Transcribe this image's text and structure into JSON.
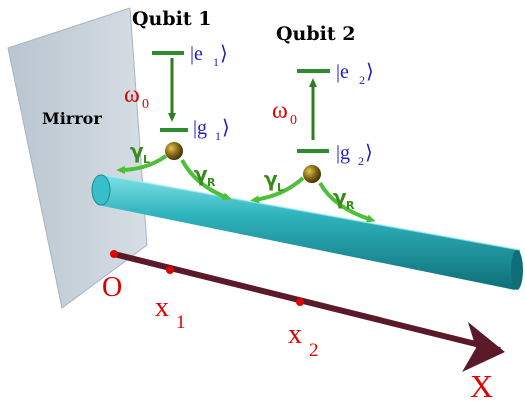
{
  "qubit1": {
    "title": "Qubit 1",
    "excited": "|e",
    "excited_sub": "1",
    "ground": "|g",
    "ground_sub": "1",
    "omega": "ω",
    "omega_sub": "0"
  },
  "qubit2": {
    "title": "Qubit 2",
    "excited": "|e",
    "excited_sub": "2",
    "ground": "|g",
    "ground_sub": "2",
    "omega": "ω",
    "omega_sub": "0"
  },
  "ket_close": "⟩",
  "mirror_label": "Mirror",
  "gamma": {
    "symbol": "γ",
    "left_sub": "L",
    "right_sub": "R"
  },
  "axis": {
    "origin": "O",
    "x1": "x",
    "x1_sub": "1",
    "x2": "x",
    "x2_sub": "2",
    "end": "X"
  },
  "colors": {
    "mirror": "#c9d3dc",
    "waveguide": "#2aa9b2",
    "axis": "#5a1a2a",
    "level": "#2e8b2e",
    "arrow_green": "#4fbf3a",
    "atom": "#6b5512",
    "point_red": "#e00000"
  }
}
